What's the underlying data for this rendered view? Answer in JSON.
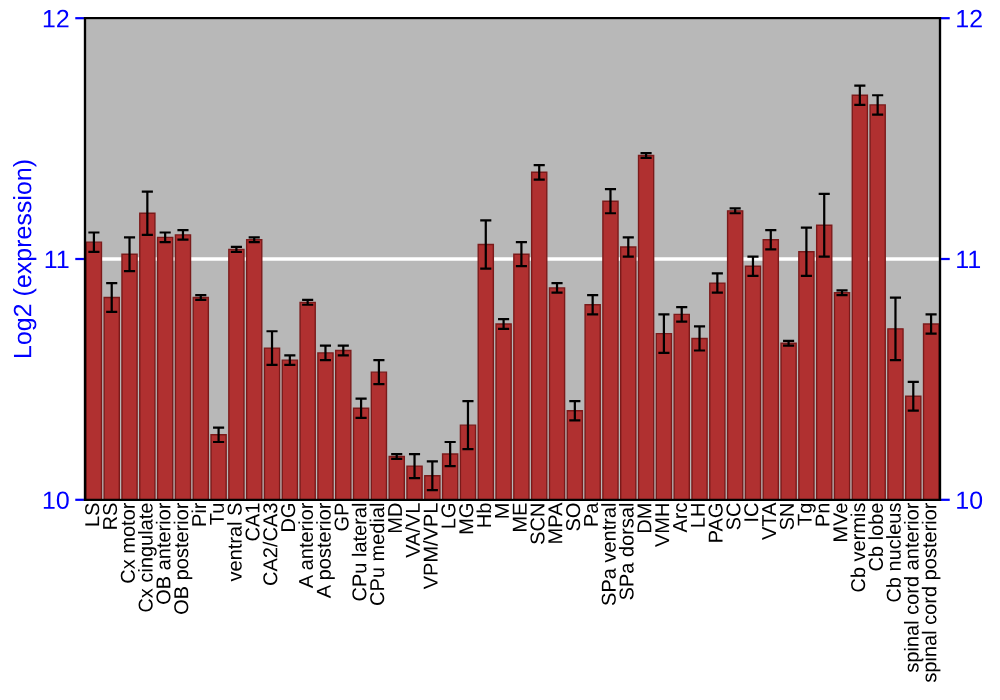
{
  "chart_data": {
    "type": "bar",
    "ylabel": "Log2 (expression)",
    "categories": [
      "LS",
      "RS",
      "Cx motor",
      "Cx cingulate",
      "OB anterior",
      "OB posterior",
      "Pir",
      "Tu",
      "ventral S",
      "CA1",
      "CA2/CA3",
      "DG",
      "A anterior",
      "A posterior",
      "GP",
      "CPu lateral",
      "CPu medial",
      "MD",
      "VA/VL",
      "VPM/VPL",
      "LG",
      "MG",
      "Hb",
      "M",
      "ME",
      "SCN",
      "MPA",
      "SO",
      "Pa",
      "SPa ventral",
      "SPa dorsal",
      "DM",
      "VMH",
      "Arc",
      "LH",
      "PAG",
      "SC",
      "IC",
      "VTA",
      "SN",
      "Tg",
      "Pn",
      "MVe",
      "Cb vermis",
      "Cb lobe",
      "Cb nucleus",
      "spinal cord anterior",
      "spinal cord posterior"
    ],
    "values": [
      11.07,
      10.84,
      11.02,
      11.19,
      11.09,
      11.1,
      10.84,
      10.27,
      11.04,
      11.08,
      10.63,
      10.58,
      10.82,
      10.61,
      10.62,
      10.38,
      10.53,
      10.18,
      10.14,
      10.1,
      10.19,
      10.31,
      11.06,
      10.73,
      11.02,
      11.36,
      10.88,
      10.37,
      10.81,
      11.24,
      11.05,
      11.43,
      10.69,
      10.77,
      10.67,
      10.9,
      11.2,
      10.97,
      11.08,
      10.65,
      11.03,
      11.14,
      10.86,
      11.68,
      11.64,
      10.71,
      10.43,
      10.73
    ],
    "errors": [
      0.04,
      0.06,
      0.07,
      0.09,
      0.02,
      0.02,
      0.01,
      0.03,
      0.01,
      0.01,
      0.07,
      0.02,
      0.01,
      0.03,
      0.02,
      0.04,
      0.05,
      0.01,
      0.05,
      0.06,
      0.05,
      0.1,
      0.1,
      0.02,
      0.05,
      0.03,
      0.02,
      0.04,
      0.04,
      0.05,
      0.04,
      0.01,
      0.08,
      0.03,
      0.05,
      0.04,
      0.01,
      0.04,
      0.04,
      0.01,
      0.1,
      0.13,
      0.01,
      0.04,
      0.04,
      0.13,
      0.06,
      0.04
    ],
    "color": "#b03030",
    "ylim": [
      10,
      12
    ],
    "yticks": [
      10,
      11,
      12
    ],
    "y2lim": [
      10,
      12
    ],
    "y2ticks": [
      10,
      11,
      12
    ],
    "grid": "y"
  }
}
